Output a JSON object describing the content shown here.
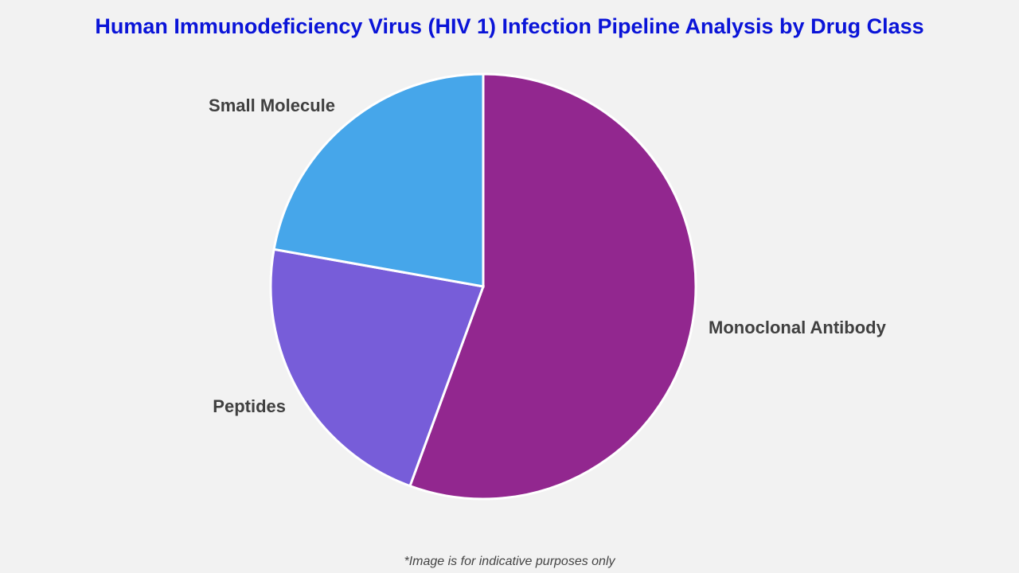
{
  "chart_data": {
    "type": "pie",
    "title": "Human Immunodeficiency Virus (HIV 1) Infection Pipeline Analysis by Drug Class",
    "start_angle": "12 o'clock",
    "direction": "clockwise",
    "slices": [
      {
        "label": "Monoclonal Antibody",
        "value": 55.6,
        "color": "#92278f"
      },
      {
        "label": "Peptides",
        "value": 22.2,
        "color": "#775dd9"
      },
      {
        "label": "Small Molecule",
        "value": 22.2,
        "color": "#46a6ea"
      }
    ]
  },
  "footnote": "*Image is for indicative purposes only"
}
